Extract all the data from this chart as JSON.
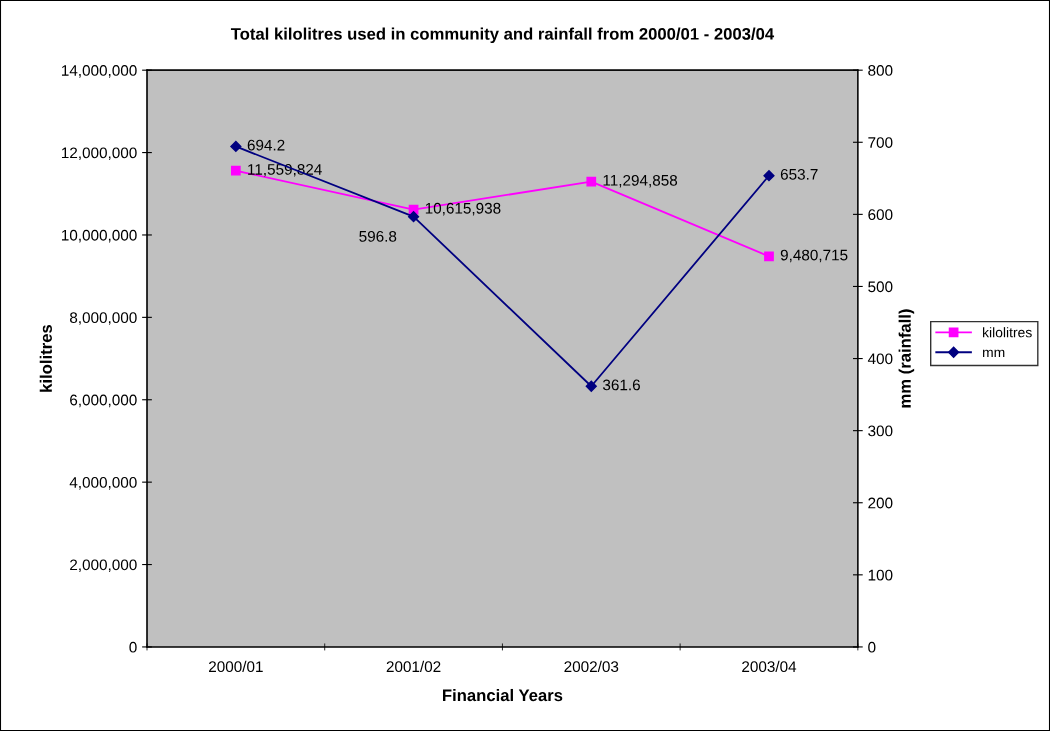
{
  "chart_data": {
    "type": "line",
    "title": "Total kilolitres used in community and rainfall from 2000/01 - 2003/04",
    "xlabel": "Financial Years",
    "ylabel": "kilolitres",
    "y2label": "mm (rainfall)",
    "categories": [
      "2000/01",
      "2001/02",
      "2002/03",
      "2003/04"
    ],
    "series": [
      {
        "name": "kilolitres",
        "color": "#ff00ff",
        "marker": "square",
        "values": [
          11559824,
          10615938,
          11294858,
          9480715
        ],
        "value_labels": [
          "11,559,824",
          "10,615,938",
          "11,294,858",
          "9,480,715"
        ]
      },
      {
        "name": "mm",
        "color": "#000080",
        "marker": "diamond",
        "axis": "y2",
        "values": [
          694.2,
          596.8,
          361.6,
          653.7
        ],
        "value_labels": [
          "694.2",
          "596.8",
          "361.6",
          "653.7"
        ]
      }
    ],
    "ylim": [
      0,
      14000000
    ],
    "yticks": [
      {
        "value": 0,
        "label": "0"
      },
      {
        "value": 2000000,
        "label": "2,000,000"
      },
      {
        "value": 4000000,
        "label": "4,000,000"
      },
      {
        "value": 6000000,
        "label": "6,000,000"
      },
      {
        "value": 8000000,
        "label": "8,000,000"
      },
      {
        "value": 10000000,
        "label": "10,000,000"
      },
      {
        "value": 12000000,
        "label": "12,000,000"
      },
      {
        "value": 14000000,
        "label": "14,000,000"
      }
    ],
    "y2lim": [
      0,
      800
    ],
    "y2ticks": [
      0,
      100,
      200,
      300,
      400,
      500,
      600,
      700,
      800
    ],
    "grid": false,
    "legend": "right",
    "line_style": "solid"
  }
}
